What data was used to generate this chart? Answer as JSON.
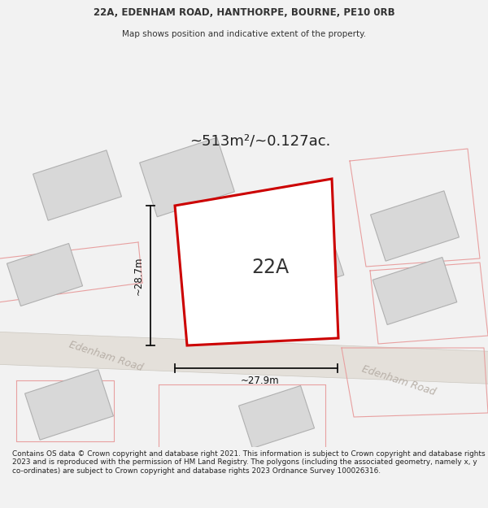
{
  "title_line1": "22A, EDENHAM ROAD, HANTHORPE, BOURNE, PE10 0RB",
  "title_line2": "Map shows position and indicative extent of the property.",
  "area_label": "~513m²/~0.127ac.",
  "property_label": "22A",
  "dim_vertical": "~28.7m",
  "dim_horizontal": "~27.9m",
  "road_label1": "Edenham Road",
  "road_label2": "Edenham Road",
  "footer_text": "Contains OS data © Crown copyright and database right 2021. This information is subject to Crown copyright and database rights 2023 and is reproduced with the permission of HM Land Registry. The polygons (including the associated geometry, namely x, y co-ordinates) are subject to Crown copyright and database rights 2023 Ordnance Survey 100026316.",
  "bg_color": "#f2f2f2",
  "building_fill": "#d8d8d8",
  "building_edge": "#b0b0b0",
  "road_fill": "#e4e0da",
  "road_edge": "#ccc8c0",
  "property_color": "#cc0000",
  "nearby_color": "#e8a0a0",
  "text_color": "#333333",
  "dim_color": "#111111",
  "footer_color": "#222222"
}
